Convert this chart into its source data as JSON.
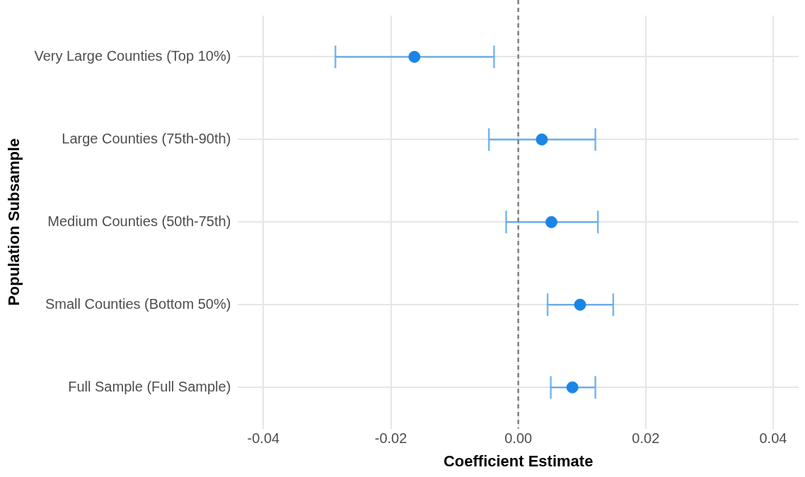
{
  "chart_data": {
    "type": "scatter",
    "orientation": "horizontal",
    "xlabel": "Coefficient Estimate",
    "ylabel": "Population Subsample",
    "categories": [
      "Very Large Counties (Top 10%)",
      "Large Counties (75th-90th)",
      "Medium Counties (50th-75th)",
      "Small Counties (Bottom 50%)",
      "Full Sample (Full Sample)"
    ],
    "series": [
      {
        "color": "#1a85e6",
        "values": [
          -0.0163,
          0.0037,
          0.0052,
          0.0097,
          0.0085
        ],
        "errors": [
          [
            -0.0287,
            -0.0038
          ],
          [
            -0.0046,
            0.0121
          ],
          [
            -0.0019,
            0.0125
          ],
          [
            0.0046,
            0.0149
          ],
          [
            0.0051,
            0.0121
          ]
        ]
      }
    ],
    "xlim": [
      -0.044,
      0.044
    ],
    "xticks": [
      -0.04,
      -0.02,
      {
        "value": 0,
        "label": "0.00"
      },
      0.02,
      0.04
    ],
    "ref_lines": [
      {
        "axis": "x",
        "value": 0,
        "color": "#808080",
        "line_style": "dashed"
      }
    ],
    "grid": true,
    "marker": "circle",
    "legend": false
  }
}
